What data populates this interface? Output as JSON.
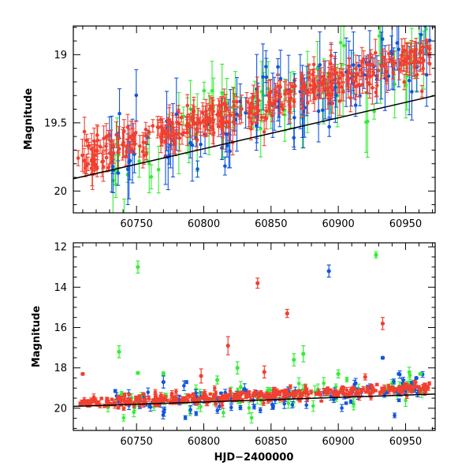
{
  "colors": {
    "green": "#33ee33",
    "blue": "#1155dd",
    "red": "#f04030",
    "trend": "#000000",
    "axis": "#000000"
  },
  "chart_data": [
    {
      "type": "scatter",
      "panel": "top",
      "title": "",
      "xlabel": "",
      "ylabel": "Magnitude",
      "xlim": [
        60703,
        60972
      ],
      "ylim": [
        20.16,
        18.79
      ],
      "y_inverted": true,
      "x_ticks": [
        60750,
        60800,
        60850,
        60900,
        60950
      ],
      "x_tick_labels": [
        "60750",
        "60800",
        "60850",
        "60900",
        "60950"
      ],
      "y_ticks": [
        19.0,
        19.5,
        20.0
      ],
      "y_tick_labels": [
        "19",
        "19.5",
        "20"
      ],
      "trend_line": {
        "x": [
          60703,
          60972
        ],
        "y": [
          19.91,
          19.3
        ]
      },
      "series": [
        {
          "name": "green",
          "color_key": "green",
          "start_x": 60727,
          "end_x": 60968,
          "mag_start": 19.8,
          "mag_end": 18.99,
          "scatter": 0.16,
          "err_min": 0.05,
          "err_max": 0.3,
          "points": 70
        },
        {
          "name": "blue",
          "color_key": "blue",
          "start_x": 60727,
          "end_x": 60968,
          "mag_start": 19.82,
          "mag_end": 18.99,
          "scatter": 0.14,
          "err_min": 0.04,
          "err_max": 0.28,
          "points": 110
        },
        {
          "name": "red",
          "color_key": "red",
          "start_x": 60706,
          "end_x": 60968,
          "mag_start": 19.78,
          "mag_end": 18.99,
          "scatter": 0.07,
          "err_min": 0.02,
          "err_max": 0.12,
          "points": 380
        }
      ],
      "outliers": []
    },
    {
      "type": "scatter",
      "panel": "bottom",
      "title": "",
      "xlabel": "HJD−2400000",
      "ylabel": "Magnitude",
      "xlim": [
        60703,
        60972
      ],
      "ylim": [
        21.1,
        11.8
      ],
      "y_inverted": true,
      "x_ticks": [
        60750,
        60800,
        60850,
        60900,
        60950
      ],
      "x_tick_labels": [
        "60750",
        "60800",
        "60850",
        "60900",
        "60950"
      ],
      "y_ticks": [
        12,
        14,
        16,
        18,
        20
      ],
      "y_tick_labels": [
        "12",
        "14",
        "16",
        "18",
        "20"
      ],
      "trend_line": {
        "x": [
          60703,
          60972
        ],
        "y": [
          19.91,
          19.3
        ]
      },
      "series": [
        {
          "name": "green",
          "color_key": "green",
          "start_x": 60727,
          "end_x": 60968,
          "mag_start": 19.8,
          "mag_end": 18.99,
          "scatter": 0.35,
          "err_min": 0.1,
          "err_max": 0.3,
          "points": 70
        },
        {
          "name": "blue",
          "color_key": "blue",
          "start_x": 60727,
          "end_x": 60968,
          "mag_start": 19.82,
          "mag_end": 18.99,
          "scatter": 0.3,
          "err_min": 0.05,
          "err_max": 0.25,
          "points": 110
        },
        {
          "name": "red",
          "color_key": "red",
          "start_x": 60706,
          "end_x": 60968,
          "mag_start": 19.78,
          "mag_end": 18.99,
          "scatter": 0.15,
          "err_min": 0.04,
          "err_max": 0.15,
          "points": 380
        }
      ],
      "outliers": [
        {
          "series": "green",
          "x": 60751,
          "y": 13.0,
          "err": 0.3
        },
        {
          "series": "green",
          "x": 60928,
          "y": 12.4,
          "err": 0.15
        },
        {
          "series": "blue",
          "x": 60893,
          "y": 13.2,
          "err": 0.3
        },
        {
          "series": "red",
          "x": 60840,
          "y": 13.8,
          "err": 0.25
        },
        {
          "series": "red",
          "x": 60862,
          "y": 15.3,
          "err": 0.2
        },
        {
          "series": "red",
          "x": 60933,
          "y": 15.8,
          "err": 0.3
        },
        {
          "series": "red",
          "x": 60818,
          "y": 16.9,
          "err": 0.45
        },
        {
          "series": "green",
          "x": 60737,
          "y": 17.2,
          "err": 0.3
        },
        {
          "series": "blue",
          "x": 60933,
          "y": 17.5,
          "err": 0.05
        },
        {
          "series": "green",
          "x": 60874,
          "y": 17.3,
          "err": 0.4
        },
        {
          "series": "green",
          "x": 60867,
          "y": 17.6,
          "err": 0.3
        },
        {
          "series": "red",
          "x": 60710,
          "y": 18.3,
          "err": 0.05
        },
        {
          "series": "green",
          "x": 60751,
          "y": 18.25,
          "err": 0.05
        },
        {
          "series": "green",
          "x": 60770,
          "y": 18.3,
          "err": 0.1
        },
        {
          "series": "red",
          "x": 60798,
          "y": 18.4,
          "err": 0.35
        },
        {
          "series": "green",
          "x": 60825,
          "y": 18.0,
          "err": 0.3
        },
        {
          "series": "red",
          "x": 60845,
          "y": 18.2,
          "err": 0.3
        },
        {
          "series": "green",
          "x": 60810,
          "y": 18.6,
          "err": 0.2
        },
        {
          "series": "blue",
          "x": 60770,
          "y": 18.7,
          "err": 0.3
        },
        {
          "series": "green",
          "x": 60900,
          "y": 18.3,
          "err": 0.2
        },
        {
          "series": "red",
          "x": 60920,
          "y": 18.45,
          "err": 0.15
        },
        {
          "series": "blue",
          "x": 60945,
          "y": 18.3,
          "err": 0.05
        },
        {
          "series": "blue",
          "x": 60958,
          "y": 18.5,
          "err": 0.05
        },
        {
          "series": "green",
          "x": 60961,
          "y": 18.3,
          "err": 0.05
        }
      ]
    }
  ]
}
